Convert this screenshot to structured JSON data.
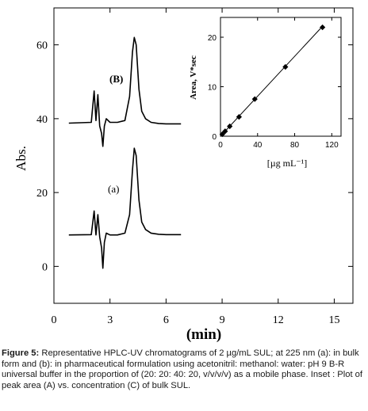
{
  "chart_data": [
    {
      "type": "line",
      "xlabel": "(min)",
      "ylabel": "Abs.",
      "xlim": [
        0,
        16
      ],
      "ylim": [
        -10,
        70
      ],
      "xticks": [
        0,
        3,
        6,
        9,
        12,
        15
      ],
      "yticks": [
        0,
        20,
        40,
        60
      ],
      "grid": false,
      "series": [
        {
          "name": "(a)",
          "x": [
            0.8,
            2.0,
            2.15,
            2.25,
            2.35,
            2.45,
            2.55,
            2.62,
            2.7,
            2.8,
            3.0,
            3.4,
            3.8,
            4.05,
            4.2,
            4.3,
            4.4,
            4.55,
            4.7,
            4.9,
            5.2,
            5.6,
            6.0,
            6.8
          ],
          "y": [
            8.5,
            8.6,
            15.0,
            8.5,
            14.0,
            8.0,
            5.0,
            -0.5,
            6.5,
            9.0,
            8.5,
            8.5,
            9.0,
            14.0,
            26.0,
            32.0,
            30.0,
            18.0,
            12.0,
            10.0,
            9.0,
            8.7,
            8.6,
            8.6
          ]
        },
        {
          "name": "(B)",
          "x": [
            0.8,
            2.0,
            2.15,
            2.25,
            2.35,
            2.45,
            2.55,
            2.62,
            2.7,
            2.8,
            3.0,
            3.4,
            3.8,
            4.05,
            4.2,
            4.3,
            4.4,
            4.55,
            4.7,
            4.9,
            5.2,
            5.6,
            6.0,
            6.8
          ],
          "y": [
            38.8,
            39.0,
            47.5,
            39.5,
            46.5,
            38.0,
            36.0,
            32.5,
            38.0,
            40.0,
            39.0,
            39.0,
            39.5,
            46.0,
            58.0,
            62.0,
            60.0,
            48.0,
            42.0,
            40.0,
            39.0,
            38.7,
            38.6,
            38.6
          ]
        }
      ],
      "annotations": [
        "(B)",
        "(a)"
      ]
    },
    {
      "type": "scatter",
      "xlabel": "[µg mL⁻¹]",
      "ylabel": "Area, V*sec",
      "xlim": [
        0,
        130
      ],
      "ylim": [
        0,
        24
      ],
      "xticks": [
        0,
        40,
        80,
        120
      ],
      "yticks": [
        0,
        10,
        20
      ],
      "grid": false,
      "x": [
        2,
        5,
        10,
        20,
        37,
        70,
        110
      ],
      "y": [
        0.4,
        1.0,
        2.0,
        3.9,
        7.5,
        14.0,
        22.0
      ],
      "fit_line": [
        [
          0,
          0
        ],
        [
          110,
          22.2
        ]
      ]
    }
  ],
  "caption": {
    "label": "Figure 5:",
    "text": " Representative HPLC-UV chromatograms of 2 µg/mL SUL; at 225 nm (a): in bulk form and (b): in pharmaceutical formulation using acetonitril: methanol: water: pH 9 B-R universal buffer in the proportion of (20: 20: 40: 20, v/v/v/v) as a mobile phase. Inset : Plot of peak area (A) vs. concentration (C) of bulk SUL."
  }
}
